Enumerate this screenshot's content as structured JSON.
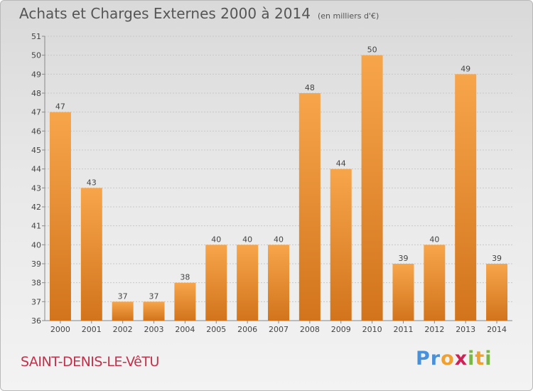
{
  "header": {
    "title": "Achats et Charges Externes 2000 à 2014",
    "subtitle": "(en milliers d'€)"
  },
  "footer": {
    "place": "SAINT-DENIS-LE-VêTU",
    "logo_letters": [
      "P",
      "r",
      "o",
      "x",
      "i",
      "t",
      "i"
    ],
    "logo_colors": [
      "#4a90d9",
      "#4a90d9",
      "#f0a030",
      "#cc2255",
      "#7ab648",
      "#f0a030",
      "#7ab648"
    ]
  },
  "chart_data": {
    "type": "bar",
    "title": "Achats et Charges Externes 2000 à 2014",
    "subtitle": "(en milliers d'€)",
    "categories": [
      "2000",
      "2001",
      "2002",
      "2003",
      "2004",
      "2005",
      "2006",
      "2007",
      "2008",
      "2009",
      "2010",
      "2011",
      "2012",
      "2013",
      "2014"
    ],
    "values": [
      47,
      43,
      37,
      37,
      38,
      40,
      40,
      40,
      48,
      44,
      50,
      39,
      40,
      49,
      39
    ],
    "ylim": [
      36,
      51
    ],
    "yticks": [
      36,
      37,
      38,
      39,
      40,
      41,
      42,
      43,
      44,
      45,
      46,
      47,
      48,
      49,
      50,
      51
    ],
    "grid": true,
    "bar_color_top": "#f7a54b",
    "bar_color_bottom": "#d2741c"
  }
}
